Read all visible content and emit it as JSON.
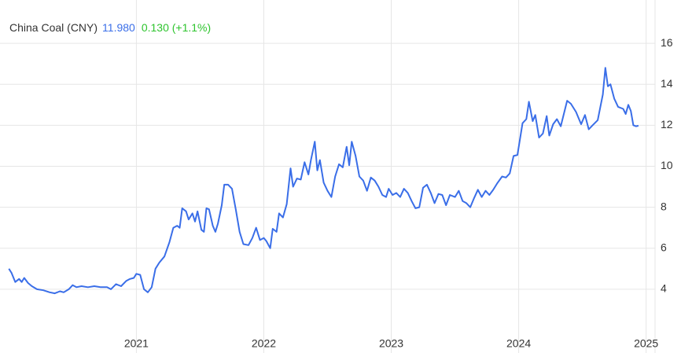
{
  "chart_data": {
    "type": "line",
    "title": "China Coal (CNY)",
    "last_price": "11.980",
    "change": "0.130 (+1.1%)",
    "color": "#3a6ee8",
    "price_color": "#3a6ee8",
    "change_color": "#2ec42e",
    "grid": true,
    "y_axis_side": "right",
    "xlim": [
      2019.93,
      2025.07
    ],
    "xticks": [
      2021,
      2022,
      2023,
      2024,
      2025
    ],
    "ylim": [
      2,
      17
    ],
    "yticks": [
      4,
      6,
      8,
      10,
      12,
      14,
      16
    ],
    "x": [
      2020.0,
      2020.02,
      2020.05,
      2020.08,
      2020.1,
      2020.12,
      2020.15,
      2020.18,
      2020.22,
      2020.27,
      2020.32,
      2020.36,
      2020.4,
      2020.43,
      2020.47,
      2020.5,
      2020.53,
      2020.57,
      2020.62,
      2020.67,
      2020.72,
      2020.77,
      2020.8,
      2020.84,
      2020.88,
      2020.92,
      2020.95,
      2020.98,
      2021.0,
      2021.03,
      2021.06,
      2021.09,
      2021.12,
      2021.15,
      2021.18,
      2021.22,
      2021.26,
      2021.29,
      2021.32,
      2021.34,
      2021.36,
      2021.39,
      2021.41,
      2021.44,
      2021.46,
      2021.48,
      2021.51,
      2021.53,
      2021.55,
      2021.57,
      2021.6,
      2021.62,
      2021.64,
      2021.67,
      2021.69,
      2021.72,
      2021.75,
      2021.78,
      2021.81,
      2021.84,
      2021.88,
      2021.91,
      2021.94,
      2021.97,
      2022.0,
      2022.02,
      2022.05,
      2022.07,
      2022.1,
      2022.12,
      2022.15,
      2022.18,
      2022.21,
      2022.23,
      2022.26,
      2022.29,
      2022.32,
      2022.35,
      2022.37,
      2022.4,
      2022.42,
      2022.44,
      2022.47,
      2022.5,
      2022.53,
      2022.56,
      2022.59,
      2022.62,
      2022.65,
      2022.67,
      2022.69,
      2022.72,
      2022.75,
      2022.78,
      2022.81,
      2022.84,
      2022.87,
      2022.9,
      2022.93,
      2022.96,
      2022.98,
      2023.01,
      2023.04,
      2023.07,
      2023.1,
      2023.13,
      2023.16,
      2023.19,
      2023.22,
      2023.25,
      2023.28,
      2023.31,
      2023.34,
      2023.37,
      2023.4,
      2023.43,
      2023.46,
      2023.5,
      2023.53,
      2023.56,
      2023.59,
      2023.62,
      2023.65,
      2023.68,
      2023.71,
      2023.74,
      2023.77,
      2023.8,
      2023.83,
      2023.87,
      2023.9,
      2023.93,
      2023.96,
      2023.99,
      2024.03,
      2024.06,
      2024.08,
      2024.11,
      2024.13,
      2024.16,
      2024.19,
      2024.22,
      2024.24,
      2024.27,
      2024.3,
      2024.33,
      2024.38,
      2024.41,
      2024.45,
      2024.49,
      2024.52,
      2024.55,
      2024.58,
      2024.62,
      2024.66,
      2024.68,
      2024.7,
      2024.72,
      2024.75,
      2024.78,
      2024.82,
      2024.84,
      2024.86,
      2024.88,
      2024.9,
      2024.92,
      2024.94
    ],
    "values": [
      5.0,
      4.8,
      4.35,
      4.5,
      4.35,
      4.55,
      4.3,
      4.15,
      4.0,
      3.95,
      3.85,
      3.8,
      3.9,
      3.85,
      4.0,
      4.2,
      4.1,
      4.15,
      4.1,
      4.15,
      4.1,
      4.1,
      4.0,
      4.25,
      4.15,
      4.4,
      4.5,
      4.55,
      4.75,
      4.7,
      4.0,
      3.85,
      4.1,
      5.0,
      5.3,
      5.6,
      6.3,
      7.0,
      7.1,
      7.0,
      7.95,
      7.8,
      7.4,
      7.7,
      7.3,
      7.8,
      6.9,
      6.8,
      7.95,
      7.9,
      7.1,
      6.8,
      7.2,
      8.1,
      9.1,
      9.1,
      8.9,
      7.9,
      6.8,
      6.2,
      6.15,
      6.5,
      7.0,
      6.4,
      6.5,
      6.35,
      6.0,
      6.95,
      6.8,
      7.7,
      7.5,
      8.15,
      9.9,
      9.0,
      9.4,
      9.35,
      10.2,
      9.6,
      10.3,
      11.2,
      9.8,
      10.3,
      9.2,
      8.8,
      8.5,
      9.5,
      10.1,
      9.95,
      10.95,
      10.05,
      11.2,
      10.5,
      9.5,
      9.3,
      8.8,
      9.45,
      9.3,
      9.0,
      8.6,
      8.5,
      8.9,
      8.6,
      8.7,
      8.5,
      8.9,
      8.7,
      8.3,
      7.95,
      8.0,
      8.95,
      9.1,
      8.7,
      8.2,
      8.65,
      8.6,
      8.1,
      8.6,
      8.5,
      8.8,
      8.3,
      8.2,
      8.0,
      8.45,
      8.85,
      8.5,
      8.8,
      8.6,
      8.85,
      9.15,
      9.5,
      9.45,
      9.65,
      10.5,
      10.55,
      12.1,
      12.3,
      13.15,
      12.2,
      12.5,
      11.4,
      11.6,
      12.45,
      11.5,
      12.05,
      12.3,
      11.95,
      13.2,
      13.05,
      12.65,
      12.05,
      12.5,
      11.8,
      12.0,
      12.25,
      13.5,
      14.8,
      13.9,
      14.0,
      13.3,
      12.9,
      12.8,
      12.55,
      13.0,
      12.7,
      12.0,
      11.95,
      11.98
    ]
  }
}
